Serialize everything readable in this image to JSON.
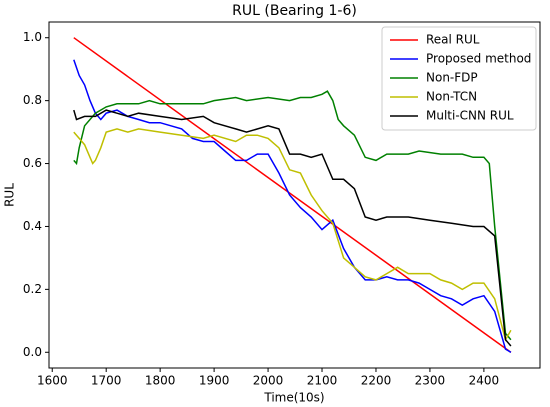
{
  "chart_data": {
    "type": "line",
    "title": "RUL (Bearing 1-6)",
    "xlabel": "Time(10s)",
    "ylabel": "RUL",
    "xlim": [
      1594,
      2504
    ],
    "ylim": [
      -0.05,
      1.05
    ],
    "xticks": [
      1600,
      1700,
      1800,
      1900,
      2000,
      2100,
      2200,
      2300,
      2400
    ],
    "yticks": [
      {
        "value": 0,
        "label": "0.0"
      },
      {
        "value": 0.2,
        "label": "0.2"
      },
      {
        "value": 0.4,
        "label": "0.4"
      },
      {
        "value": 0.6,
        "label": "0.6"
      },
      {
        "value": 0.8,
        "label": "0.8"
      },
      {
        "value": 1,
        "label": "1.0"
      }
    ],
    "legend": "upper right",
    "series": [
      {
        "name": "Real RUL",
        "color": "#ff0000",
        "x": [
          1640,
          2450
        ],
        "values": [
          1.0,
          0.0
        ]
      },
      {
        "name": "Proposed method",
        "color": "#0000ff",
        "x": [
          1640,
          1650,
          1660,
          1670,
          1680,
          1690,
          1700,
          1720,
          1740,
          1760,
          1780,
          1800,
          1820,
          1840,
          1860,
          1880,
          1900,
          1920,
          1940,
          1960,
          1980,
          2000,
          2020,
          2040,
          2060,
          2080,
          2100,
          2120,
          2140,
          2160,
          2180,
          2200,
          2220,
          2240,
          2260,
          2280,
          2300,
          2320,
          2340,
          2360,
          2380,
          2400,
          2420,
          2440,
          2450
        ],
        "values": [
          0.93,
          0.88,
          0.85,
          0.8,
          0.76,
          0.74,
          0.76,
          0.77,
          0.75,
          0.74,
          0.73,
          0.73,
          0.72,
          0.71,
          0.68,
          0.67,
          0.67,
          0.64,
          0.61,
          0.61,
          0.63,
          0.63,
          0.57,
          0.5,
          0.46,
          0.43,
          0.39,
          0.42,
          0.33,
          0.27,
          0.23,
          0.23,
          0.24,
          0.23,
          0.23,
          0.22,
          0.2,
          0.18,
          0.17,
          0.15,
          0.17,
          0.18,
          0.13,
          0.01,
          0.0
        ]
      },
      {
        "name": "Non-FDP",
        "color": "#008000",
        "x": [
          1640,
          1645,
          1650,
          1660,
          1680,
          1700,
          1720,
          1760,
          1780,
          1800,
          1840,
          1880,
          1900,
          1940,
          1960,
          2000,
          2040,
          2060,
          2080,
          2100,
          2110,
          2120,
          2130,
          2140,
          2160,
          2180,
          2200,
          2220,
          2260,
          2280,
          2320,
          2360,
          2380,
          2400,
          2410,
          2420,
          2440,
          2450
        ],
        "values": [
          0.61,
          0.6,
          0.65,
          0.72,
          0.76,
          0.78,
          0.79,
          0.79,
          0.8,
          0.79,
          0.79,
          0.79,
          0.8,
          0.81,
          0.8,
          0.81,
          0.8,
          0.81,
          0.81,
          0.82,
          0.83,
          0.8,
          0.74,
          0.72,
          0.69,
          0.62,
          0.61,
          0.63,
          0.63,
          0.64,
          0.63,
          0.63,
          0.62,
          0.62,
          0.6,
          0.4,
          0.06,
          0.04
        ]
      },
      {
        "name": "Non-TCN",
        "color": "#bfbf00",
        "x": [
          1640,
          1650,
          1660,
          1670,
          1675,
          1680,
          1690,
          1700,
          1720,
          1740,
          1760,
          1800,
          1840,
          1880,
          1900,
          1940,
          1960,
          1980,
          2000,
          2020,
          2040,
          2060,
          2080,
          2100,
          2120,
          2140,
          2160,
          2180,
          2200,
          2220,
          2240,
          2260,
          2280,
          2300,
          2320,
          2340,
          2360,
          2380,
          2400,
          2420,
          2440,
          2450
        ],
        "values": [
          0.7,
          0.68,
          0.66,
          0.62,
          0.6,
          0.61,
          0.65,
          0.7,
          0.71,
          0.7,
          0.71,
          0.7,
          0.69,
          0.68,
          0.69,
          0.67,
          0.69,
          0.69,
          0.68,
          0.65,
          0.58,
          0.57,
          0.5,
          0.45,
          0.41,
          0.3,
          0.27,
          0.24,
          0.23,
          0.25,
          0.27,
          0.25,
          0.25,
          0.25,
          0.23,
          0.22,
          0.2,
          0.22,
          0.22,
          0.17,
          0.04,
          0.07
        ]
      },
      {
        "name": "Multi-CNN RUL",
        "color": "#000000",
        "x": [
          1640,
          1645,
          1660,
          1680,
          1700,
          1720,
          1740,
          1760,
          1800,
          1840,
          1880,
          1900,
          1940,
          1960,
          2000,
          2020,
          2040,
          2060,
          2080,
          2100,
          2120,
          2140,
          2160,
          2180,
          2200,
          2220,
          2260,
          2300,
          2340,
          2380,
          2400,
          2420,
          2440,
          2450
        ],
        "values": [
          0.77,
          0.74,
          0.75,
          0.75,
          0.77,
          0.76,
          0.75,
          0.76,
          0.75,
          0.74,
          0.75,
          0.73,
          0.71,
          0.7,
          0.72,
          0.71,
          0.63,
          0.63,
          0.62,
          0.63,
          0.55,
          0.55,
          0.52,
          0.43,
          0.42,
          0.43,
          0.43,
          0.42,
          0.41,
          0.4,
          0.4,
          0.37,
          0.04,
          0.02
        ]
      }
    ]
  }
}
